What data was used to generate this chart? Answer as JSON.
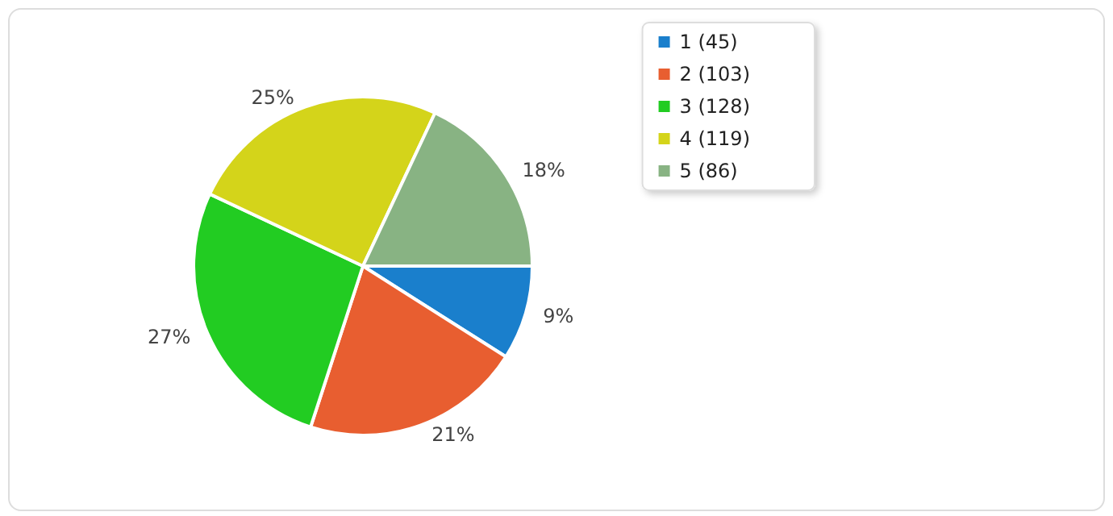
{
  "chart_data": {
    "type": "pie",
    "categories": [
      "1 (45)",
      "2 (103)",
      "3 (128)",
      "4 (119)",
      "5 (86)"
    ],
    "values": [
      9,
      21,
      27,
      25,
      18
    ],
    "colors": [
      "#1a7fcc",
      "#e85e30",
      "#22cc22",
      "#d4d41a",
      "#88b383"
    ],
    "value_labels": [
      "9%",
      "21%",
      "27%",
      "25%",
      "18%"
    ],
    "legend": "top right"
  }
}
